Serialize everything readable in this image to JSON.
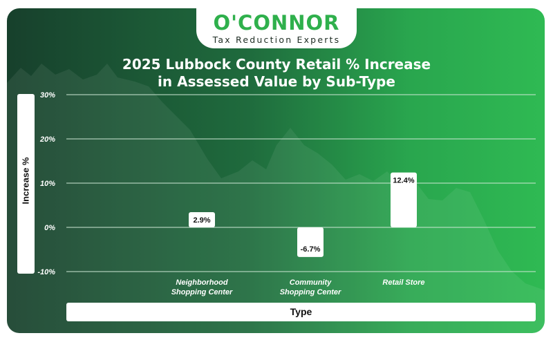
{
  "brand": {
    "name": "O'CONNOR",
    "tagline": "Tax Reduction Experts"
  },
  "chart_data": {
    "type": "bar",
    "title_line1": "2025 Lubbock County Retail % Increase",
    "title_line2": "in Assessed Value by Sub-Type",
    "xlabel": "Type",
    "ylabel": "Increase %",
    "categories": [
      "Neighborhood Shopping Center",
      "Community Shopping Center",
      "Retail Store"
    ],
    "category_lines": [
      [
        "Neighborhood",
        "Shopping Center"
      ],
      [
        "Community",
        "Shopping Center"
      ],
      [
        "Retail Store"
      ]
    ],
    "values": [
      2.9,
      -6.7,
      12.4
    ],
    "data_labels": [
      "2.9%",
      "-6.7%",
      "12.4%"
    ],
    "ylim": [
      -10,
      30
    ],
    "yticks": [
      30,
      20,
      10,
      0,
      -10
    ],
    "ytick_labels": [
      "30%",
      "20%",
      "10%",
      "0%",
      "-10%"
    ],
    "grid": true,
    "colors": {
      "bar": "#ffffff",
      "gridline": "#cfe8d6",
      "text": "#111111"
    }
  }
}
